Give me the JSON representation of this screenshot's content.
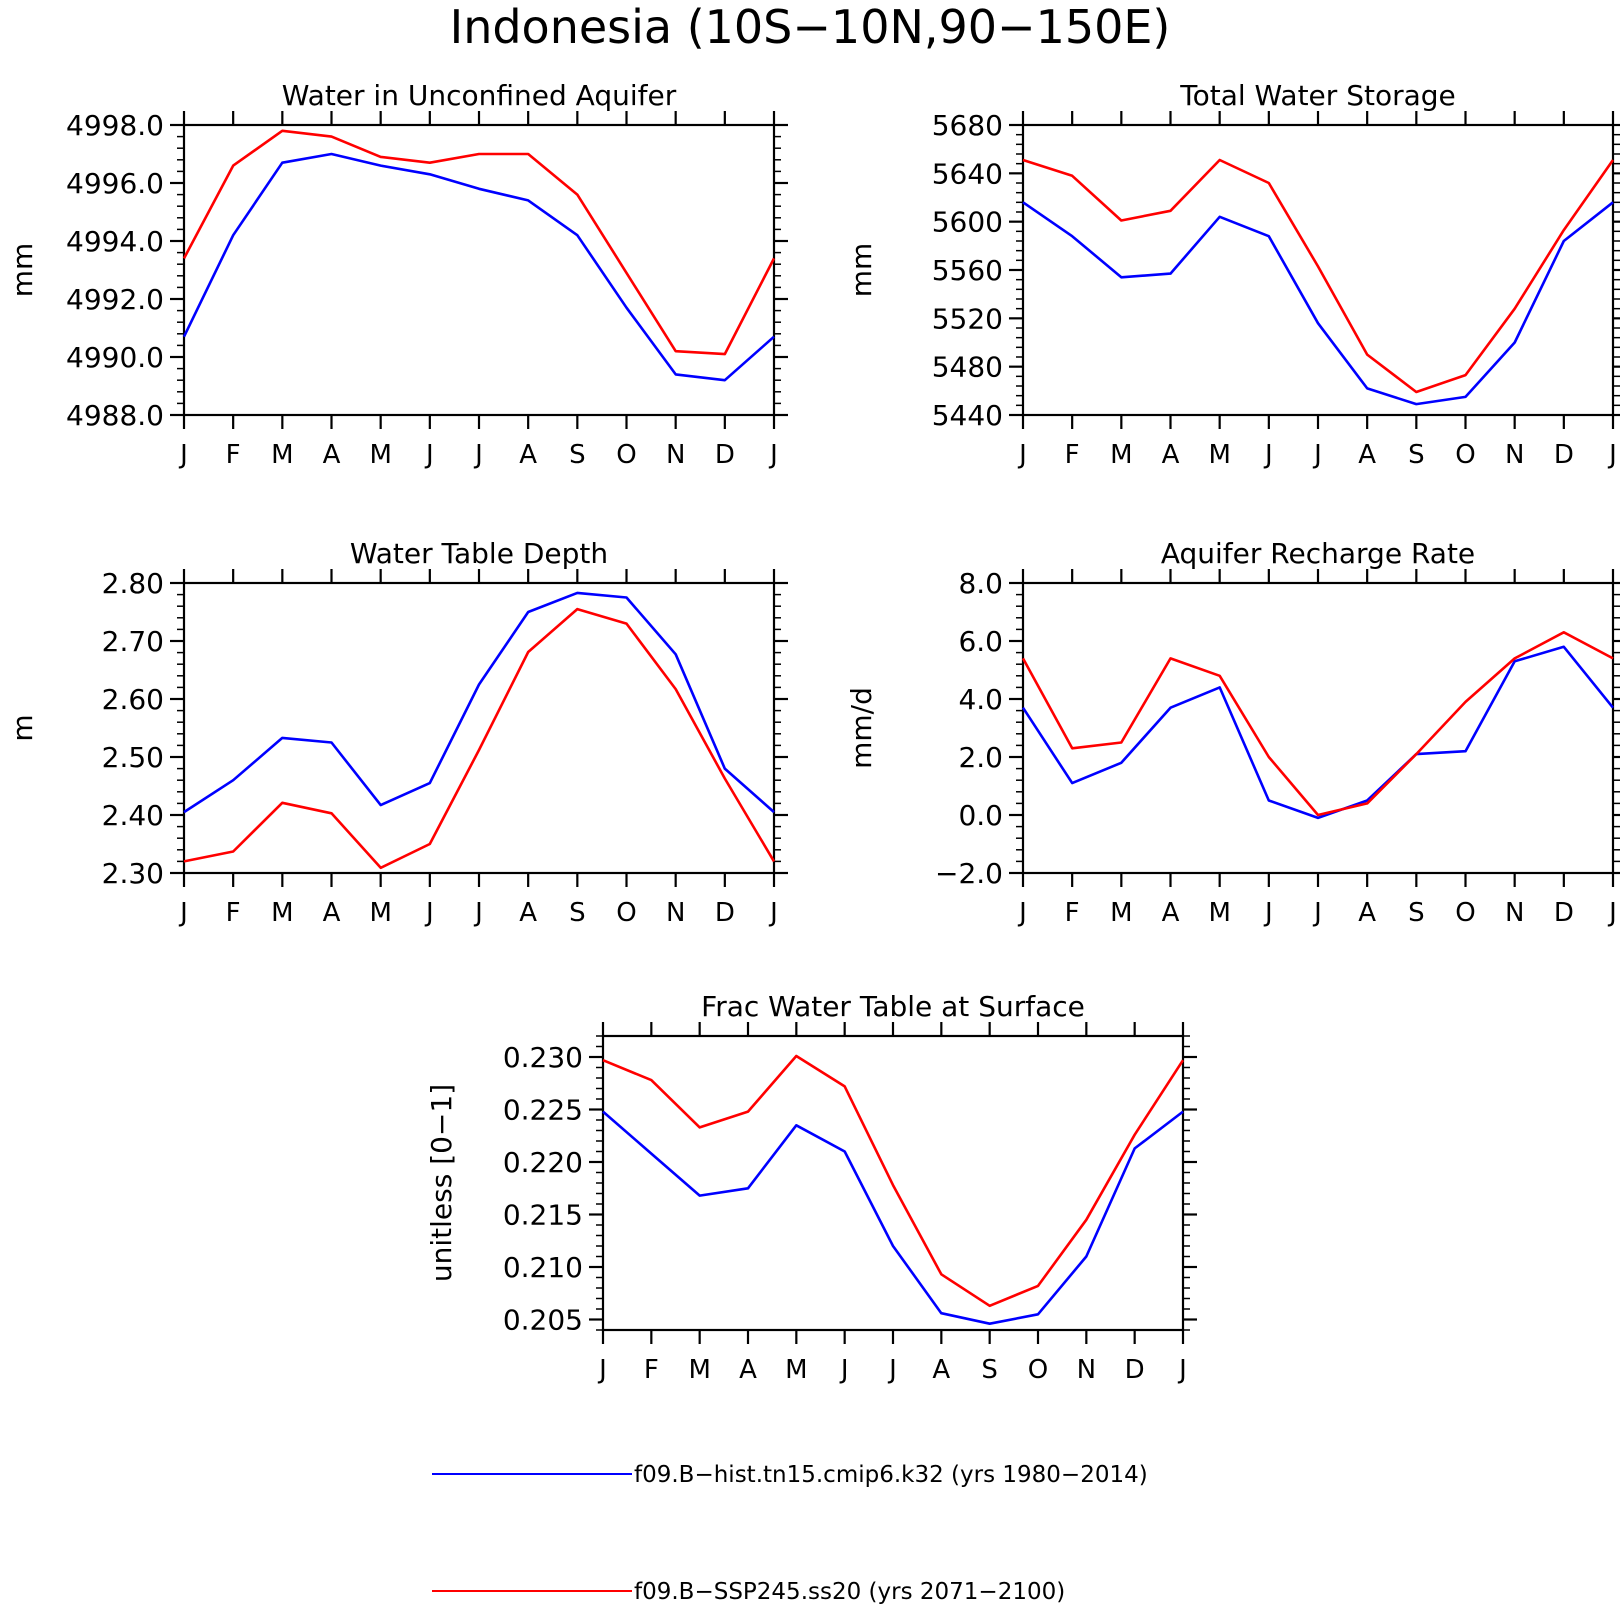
{
  "figure": {
    "title": "Indonesia (10S−10N,90−150E)",
    "colors": {
      "hist": "#0000ff",
      "ssp": "#ff0000"
    },
    "legend": [
      {
        "label": "f09.B−hist.tn15.cmip6.k32 (yrs 1980−2014)",
        "color": "#0000ff"
      },
      {
        "label": "f09.B−SSP245.ss20 (yrs 2071−2100)",
        "color": "#ff0000"
      }
    ]
  },
  "chart_data": [
    {
      "type": "line",
      "title": "Water in Unconfined Aquifer",
      "ylabel": "mm",
      "categories": [
        "J",
        "F",
        "M",
        "A",
        "M",
        "J",
        "J",
        "A",
        "S",
        "O",
        "N",
        "D",
        "J"
      ],
      "ylim": [
        4988.0,
        4998.0
      ],
      "yticks": [
        4988.0,
        4990.0,
        4992.0,
        4994.0,
        4996.0,
        4998.0
      ],
      "ytick_labels": [
        "4988.0",
        "4990.0",
        "4992.0",
        "4994.0",
        "4996.0",
        "4998.0"
      ],
      "series": [
        {
          "values": [
            4990.7,
            4994.2,
            4996.7,
            4997.0,
            4996.6,
            4996.3,
            4995.8,
            4995.4,
            4994.2,
            4991.7,
            4989.4,
            4989.2,
            4990.7
          ]
        },
        {
          "values": [
            4993.4,
            4996.6,
            4997.8,
            4997.6,
            4996.9,
            4996.7,
            4997.0,
            4997.0,
            4995.6,
            4992.9,
            4990.2,
            4990.1,
            4993.4
          ]
        }
      ]
    },
    {
      "type": "line",
      "title": "Total Water Storage",
      "ylabel": "mm",
      "categories": [
        "J",
        "F",
        "M",
        "A",
        "M",
        "J",
        "J",
        "A",
        "S",
        "O",
        "N",
        "D",
        "J"
      ],
      "ylim": [
        5440,
        5680
      ],
      "yticks": [
        5440,
        5480,
        5520,
        5560,
        5600,
        5640,
        5680
      ],
      "ytick_labels": [
        "5440",
        "5480",
        "5520",
        "5560",
        "5600",
        "5640",
        "5680"
      ],
      "series": [
        {
          "values": [
            5616,
            5588,
            5554,
            5557,
            5604,
            5588,
            5516,
            5462,
            5449,
            5455,
            5500,
            5584,
            5616
          ]
        },
        {
          "values": [
            5651,
            5638,
            5601,
            5609,
            5651,
            5632,
            5563,
            5490,
            5459,
            5473,
            5528,
            5593,
            5651
          ]
        }
      ]
    },
    {
      "type": "line",
      "title": "Water Table Depth",
      "ylabel": "m",
      "categories": [
        "J",
        "F",
        "M",
        "A",
        "M",
        "J",
        "J",
        "A",
        "S",
        "O",
        "N",
        "D",
        "J"
      ],
      "ylim": [
        2.3,
        2.8
      ],
      "yticks": [
        2.3,
        2.4,
        2.5,
        2.6,
        2.7,
        2.8
      ],
      "ytick_labels": [
        "2.30",
        "2.40",
        "2.50",
        "2.60",
        "2.70",
        "2.80"
      ],
      "series": [
        {
          "values": [
            2.405,
            2.46,
            2.533,
            2.525,
            2.417,
            2.455,
            2.625,
            2.75,
            2.783,
            2.775,
            2.677,
            2.48,
            2.405
          ]
        },
        {
          "values": [
            2.32,
            2.337,
            2.421,
            2.403,
            2.309,
            2.35,
            2.512,
            2.681,
            2.755,
            2.73,
            2.617,
            2.463,
            2.32
          ]
        }
      ]
    },
    {
      "type": "line",
      "title": "Aquifer Recharge Rate",
      "ylabel": "mm/d",
      "categories": [
        "J",
        "F",
        "M",
        "A",
        "M",
        "J",
        "J",
        "A",
        "S",
        "O",
        "N",
        "D",
        "J"
      ],
      "ylim": [
        -2.0,
        8.0
      ],
      "yticks": [
        -2.0,
        0.0,
        2.0,
        4.0,
        6.0,
        8.0
      ],
      "ytick_labels": [
        "−2.0",
        "0.0",
        "2.0",
        "4.0",
        "6.0",
        "8.0"
      ],
      "series": [
        {
          "values": [
            3.7,
            1.1,
            1.8,
            3.7,
            4.4,
            0.5,
            -0.1,
            0.5,
            2.1,
            2.2,
            5.3,
            5.8,
            3.7
          ]
        },
        {
          "values": [
            5.4,
            2.3,
            2.5,
            5.4,
            4.8,
            2.0,
            0.0,
            0.4,
            2.1,
            3.9,
            5.4,
            6.3,
            5.4
          ]
        }
      ]
    },
    {
      "type": "line",
      "title": "Frac Water Table at Surface",
      "ylabel": "unitless [0−1]",
      "categories": [
        "J",
        "F",
        "M",
        "A",
        "M",
        "J",
        "J",
        "A",
        "S",
        "O",
        "N",
        "D",
        "J"
      ],
      "ylim": [
        0.204,
        0.232
      ],
      "yticks": [
        0.205,
        0.21,
        0.215,
        0.22,
        0.225,
        0.23
      ],
      "ytick_labels": [
        "0.205",
        "0.210",
        "0.215",
        "0.220",
        "0.225",
        "0.230"
      ],
      "series": [
        {
          "values": [
            0.2248,
            0.2208,
            0.2168,
            0.2175,
            0.2235,
            0.221,
            0.212,
            0.2056,
            0.2046,
            0.2055,
            0.211,
            0.2213,
            0.2248
          ]
        },
        {
          "values": [
            0.2297,
            0.2278,
            0.2233,
            0.2248,
            0.2301,
            0.2272,
            0.2178,
            0.2093,
            0.2063,
            0.2082,
            0.2145,
            0.2226,
            0.2297
          ]
        }
      ]
    }
  ]
}
